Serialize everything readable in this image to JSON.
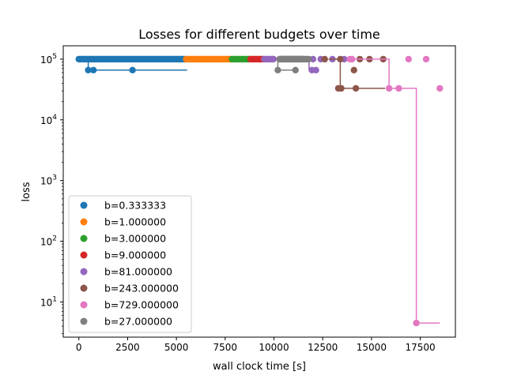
{
  "chart_data": {
    "type": "scatter",
    "title": "Losses for different budgets over time",
    "xlabel": "wall clock time [s]",
    "ylabel": "loss",
    "xlim": [
      -800,
      19300
    ],
    "ylim_log10": [
      0.42,
      5.22
    ],
    "y_scale": "log",
    "xticks": [
      {
        "value": 0,
        "label": "0"
      },
      {
        "value": 2500,
        "label": "2500"
      },
      {
        "value": 5000,
        "label": "5000"
      },
      {
        "value": 7500,
        "label": "7500"
      },
      {
        "value": 10000,
        "label": "10000"
      },
      {
        "value": 12500,
        "label": "12500"
      },
      {
        "value": 15000,
        "label": "15000"
      },
      {
        "value": 17500,
        "label": "17500"
      }
    ],
    "yticks": [
      {
        "value": 10,
        "exp": "1"
      },
      {
        "value": 100,
        "exp": "2"
      },
      {
        "value": 1000,
        "exp": "3"
      },
      {
        "value": 10000,
        "exp": "4"
      },
      {
        "value": 100000,
        "exp": "5"
      }
    ],
    "legend_position": "lower-left",
    "grid": false,
    "series": [
      {
        "name": "b=0.333333",
        "color": "#1f77b4",
        "draw_order": 1,
        "dense_range": [
          0,
          5500
        ],
        "dense_y": 100000,
        "points": [
          [
            480,
            66000
          ],
          [
            750,
            66000
          ],
          [
            2750,
            66000
          ]
        ],
        "steps": [
          [
            200,
            100000
          ],
          [
            480,
            100000
          ],
          [
            480,
            66000
          ],
          [
            5550,
            66000
          ]
        ]
      },
      {
        "name": "b=1.000000",
        "color": "#ff7f0e",
        "draw_order": 2,
        "dense_range": [
          5500,
          7850
        ],
        "dense_y": 100000,
        "points": [],
        "steps": []
      },
      {
        "name": "b=3.000000",
        "color": "#2ca02c",
        "draw_order": 3,
        "dense_range": [
          7850,
          8800
        ],
        "dense_y": 100000,
        "points": [],
        "steps": []
      },
      {
        "name": "b=9.000000",
        "color": "#d62728",
        "draw_order": 4,
        "dense_range": [
          8800,
          9500
        ],
        "dense_y": 100000,
        "points": [],
        "steps": []
      },
      {
        "name": "b=81.000000",
        "color": "#9467bd",
        "draw_order": 5,
        "dense_range": [
          9500,
          10000
        ],
        "dense_y": 100000,
        "points": [
          [
            9900,
            100000
          ],
          [
            11500,
            100000
          ],
          [
            12000,
            100000
          ],
          [
            12400,
            100000
          ],
          [
            13000,
            100000
          ],
          [
            13600,
            100000
          ],
          [
            11950,
            66000
          ],
          [
            12150,
            66000
          ]
        ],
        "steps": [
          [
            11800,
            100000
          ],
          [
            11800,
            66000
          ],
          [
            12250,
            66000
          ]
        ]
      },
      {
        "name": "b=243.000000",
        "color": "#8c564b",
        "draw_order": 6,
        "dense_range": [
          10300,
          11500
        ],
        "dense_y": 100000,
        "points": [
          [
            12600,
            100000
          ],
          [
            13400,
            100000
          ],
          [
            14400,
            100000
          ],
          [
            14900,
            100000
          ],
          [
            15600,
            100000
          ],
          [
            13300,
            33000
          ],
          [
            13450,
            33000
          ],
          [
            14200,
            33000
          ],
          [
            14100,
            66000
          ]
        ],
        "steps": [
          [
            12800,
            100000
          ],
          [
            13400,
            100000
          ],
          [
            13400,
            33000
          ],
          [
            15700,
            33000
          ]
        ]
      },
      {
        "name": "b=729.000000",
        "color": "#e377c2",
        "draw_order": 7,
        "dense_range": [
          0,
          0
        ],
        "dense_y": 100000,
        "points": [
          [
            13900,
            100000
          ],
          [
            14000,
            100000
          ],
          [
            16900,
            100000
          ],
          [
            17800,
            100000
          ],
          [
            15900,
            33000
          ],
          [
            16400,
            33000
          ],
          [
            18500,
            33000
          ],
          [
            17300,
            4.5
          ]
        ],
        "steps": [
          [
            13900,
            100000
          ],
          [
            15900,
            100000
          ],
          [
            15900,
            33000
          ],
          [
            17300,
            33000
          ],
          [
            17300,
            4.5
          ],
          [
            18500,
            4.5
          ]
        ]
      },
      {
        "name": "b=27.000000",
        "color": "#7f7f7f",
        "draw_order": 8,
        "dense_range": [
          10400,
          11800
        ],
        "dense_y": 100000,
        "points": [
          [
            10300,
            100000
          ],
          [
            10700,
            100000
          ],
          [
            11200,
            100000
          ],
          [
            10200,
            66000
          ],
          [
            11100,
            66000
          ]
        ],
        "steps": [
          [
            10200,
            100000
          ],
          [
            10200,
            66000
          ],
          [
            11200,
            66000
          ]
        ]
      }
    ]
  }
}
